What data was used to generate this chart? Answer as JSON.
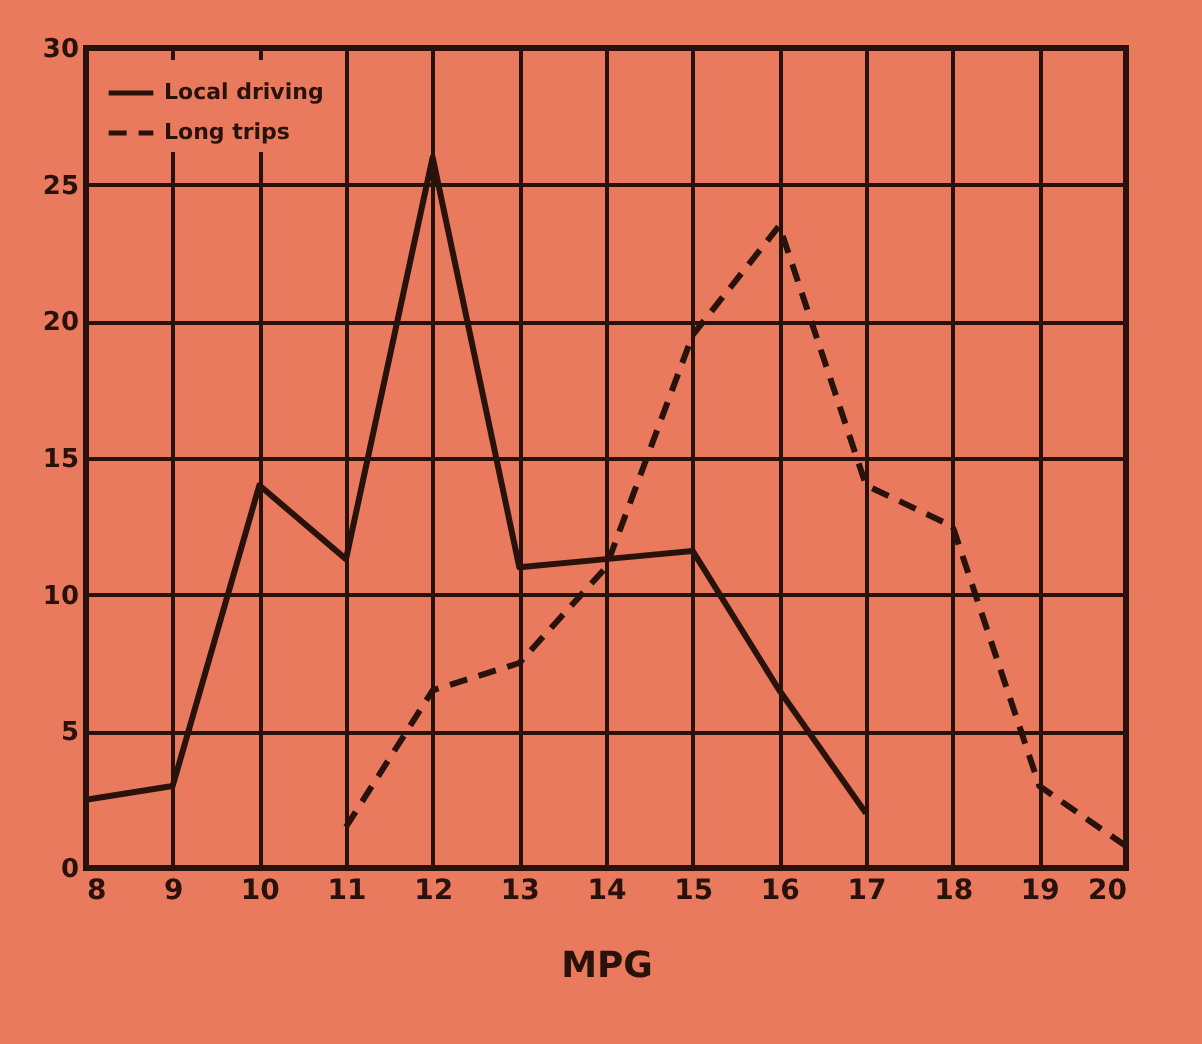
{
  "chart_data": {
    "type": "line",
    "xlabel": "MPG",
    "x": [
      8,
      9,
      10,
      11,
      12,
      13,
      14,
      15,
      16,
      17,
      18,
      19,
      20
    ],
    "series": [
      {
        "name": "Local driving",
        "color": "#2a120c",
        "line_style": "solid",
        "values": [
          2.5,
          3,
          14,
          11.3,
          26,
          11,
          11.3,
          11.6,
          6.5,
          2,
          null,
          null,
          null
        ]
      },
      {
        "name": "Long trips",
        "color": "#2a120c",
        "line_style": "dashed",
        "values": [
          null,
          null,
          null,
          1.5,
          6.5,
          7.5,
          11,
          19.5,
          23.5,
          14,
          12.5,
          3,
          0.8
        ]
      }
    ],
    "xlim": [
      8,
      20
    ],
    "xticks": [
      8,
      9,
      10,
      11,
      12,
      13,
      14,
      15,
      16,
      17,
      18,
      19,
      20
    ],
    "ylim": [
      0,
      30
    ],
    "yticks": [
      0,
      5,
      10,
      15,
      20,
      25,
      30
    ],
    "grid": true,
    "legend": "top left"
  }
}
